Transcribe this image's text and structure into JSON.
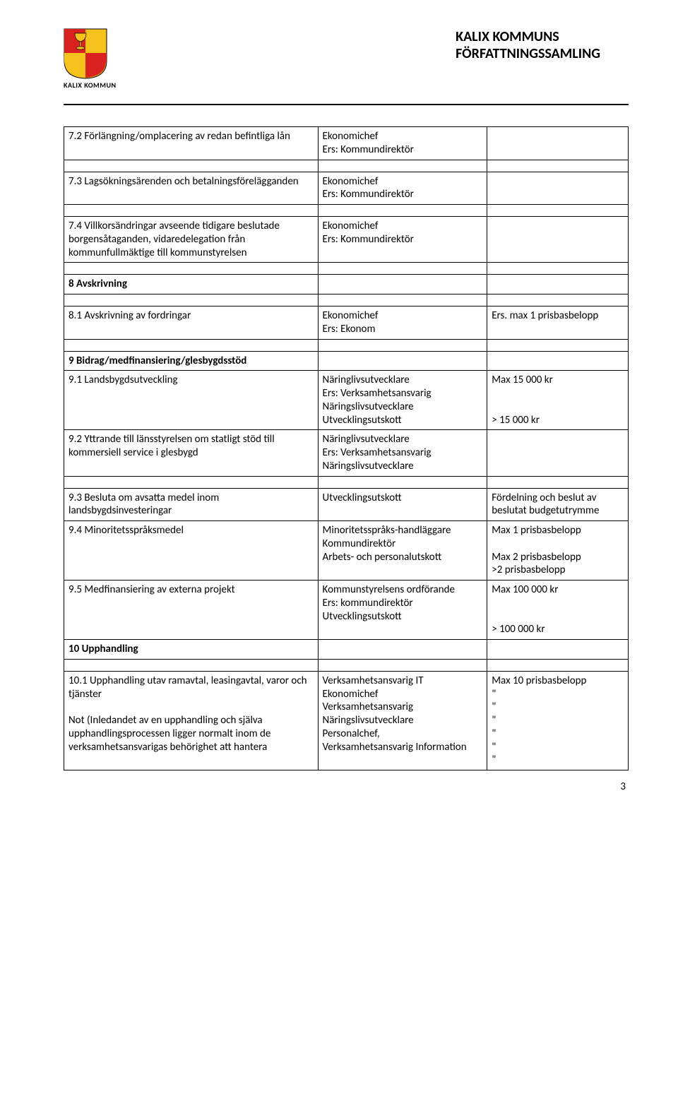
{
  "header": {
    "org_line1": "KALIX KOMMUNS",
    "org_line2": "FÖRFATTNINGSSAMLING",
    "logo_caption": "KALIX KOMMUN",
    "logo_colors": {
      "red": "#d9221f",
      "yellow": "#f6c21c",
      "white": "#ffffff"
    }
  },
  "rows": [
    {
      "a": "7.2 Förlängning/omplacering av redan befintliga lån",
      "b": "Ekonomichef\nErs: Kommundirektör",
      "c": ""
    },
    {
      "spacer": true
    },
    {
      "a": "7.3 Lagsökningsärenden och betalningsförelägganden",
      "b": "Ekonomichef\nErs: Kommundirektör",
      "c": ""
    },
    {
      "spacer": true
    },
    {
      "a": "7.4 Villkorsändringar avseende tidigare beslutade borgensåtaganden, vidaredelegation från kommunfullmäktige till kommunstyrelsen",
      "b": "Ekonomichef\nErs: Kommundirektör",
      "c": ""
    },
    {
      "spacer": true
    },
    {
      "a": "8 Avskrivning",
      "a_bold": true,
      "b": "",
      "c": ""
    },
    {
      "spacer": true
    },
    {
      "a": "8.1 Avskrivning av fordringar",
      "b": "Ekonomichef\nErs: Ekonom",
      "c": "Ers. max 1 prisbasbelopp"
    },
    {
      "spacer": true
    },
    {
      "a": "9 Bidrag/medfinansiering/glesbygdsstöd",
      "a_bold": true,
      "b": "",
      "c": ""
    },
    {
      "a": "9.1 Landsbygdsutveckling",
      "b": "Näringlivsutvecklare\nErs: Verksamhetsansvarig Näringslivsutvecklare\nUtvecklingsutskott",
      "c": "Max 15 000 kr\n\n\n> 15 000 kr"
    },
    {
      "a": "9.2 Yttrande till länsstyrelsen om statligt stöd till kommersiell service i glesbygd",
      "b": "Näringlivsutvecklare\nErs: Verksamhetsansvarig Näringslivsutvecklare",
      "c": ""
    },
    {
      "spacer": true
    },
    {
      "a": "9.3 Besluta om avsatta medel inom landsbygdsinvesteringar",
      "b": "Utvecklingsutskott",
      "c": "Fördelning och beslut av beslutat budgetutrymme"
    },
    {
      "a": "9.4 Minoritetsspråksmedel",
      "b": "Minoritetsspråks-handläggare\nKommundirektör\nArbets- och personalutskott",
      "c": "Max 1 prisbasbelopp\n\nMax 2 prisbasbelopp\n>2 prisbasbelopp"
    },
    {
      "a": "9.5 Medfinansiering av externa projekt",
      "b": "Kommunstyrelsens ordförande\nErs: kommundirektör\nUtvecklingsutskott",
      "c": "Max 100 000 kr\n\n\n> 100 000 kr"
    },
    {
      "a": "10 Upphandling",
      "a_bold": true,
      "b": "",
      "c": ""
    },
    {
      "spacer": true
    },
    {
      "a": "10.1 Upphandling utav ramavtal, leasingavtal, varor och tjänster\n\nNot (Inledandet av en upphandling och själva upphandlingsprocessen ligger normalt inom de verksamhetsansvarigas behörighet att hantera",
      "b": "Verksamhetsansvarig IT\nEkonomichef\nVerksamhetsansvarig Näringslivsutvecklare\nPersonalchef,\nVerksamhetsansvarig Information",
      "c": "Max 10 prisbasbelopp\n\"\n\"\n\"\n\"\n\"\n\""
    }
  ],
  "page_number": "3"
}
